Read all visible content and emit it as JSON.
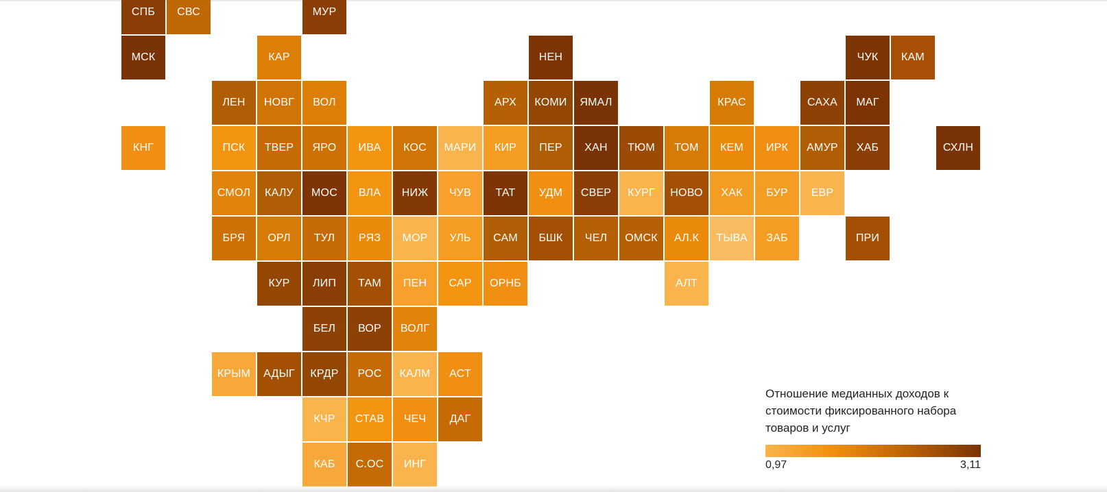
{
  "legend": {
    "title": "Отношение медианных доходов к стоимости фиксированного набора товаров и услуг",
    "min_label": "0,97",
    "max_label": "3,11",
    "min_value": 0.97,
    "max_value": 3.11,
    "colors": [
      "#f9b44d",
      "#f3900e",
      "#c56a05",
      "#7a3306"
    ]
  },
  "regions": [
    {
      "label": "СПБ",
      "row": 0,
      "col": 0,
      "color": "#8a3e05"
    },
    {
      "label": "СВС",
      "row": 0,
      "col": 1,
      "color": "#c06805"
    },
    {
      "label": "МУР",
      "row": 0,
      "col": 4,
      "color": "#8a3e05"
    },
    {
      "label": "МСК",
      "row": 1,
      "col": 0,
      "color": "#7a3306"
    },
    {
      "label": "КАР",
      "row": 1,
      "col": 3,
      "color": "#dd7e07"
    },
    {
      "label": "НЕН",
      "row": 1,
      "col": 9,
      "color": "#7c3405"
    },
    {
      "label": "ЧУК",
      "row": 1,
      "col": 16,
      "color": "#7e3505"
    },
    {
      "label": "КАМ",
      "row": 1,
      "col": 17,
      "color": "#a85106"
    },
    {
      "label": "ЛЕН",
      "row": 2,
      "col": 2,
      "color": "#b05e05"
    },
    {
      "label": "НОВГ",
      "row": 2,
      "col": 3,
      "color": "#d07405"
    },
    {
      "label": "ВОЛ",
      "row": 2,
      "col": 4,
      "color": "#dd7e07"
    },
    {
      "label": "АРХ",
      "row": 2,
      "col": 8,
      "color": "#b56005"
    },
    {
      "label": "КОМИ",
      "row": 2,
      "col": 9,
      "color": "#944705"
    },
    {
      "label": "ЯМАЛ",
      "row": 2,
      "col": 10,
      "color": "#7a3306"
    },
    {
      "label": "КРАС",
      "row": 2,
      "col": 13,
      "color": "#d77b07"
    },
    {
      "label": "САХА",
      "row": 2,
      "col": 15,
      "color": "#8e4105"
    },
    {
      "label": "МАГ",
      "row": 2,
      "col": 16,
      "color": "#7c3405"
    },
    {
      "label": "КНГ",
      "row": 3,
      "col": 0,
      "color": "#f08f12"
    },
    {
      "label": "ПСК",
      "row": 3,
      "col": 2,
      "color": "#f49512"
    },
    {
      "label": "ТВЕР",
      "row": 3,
      "col": 3,
      "color": "#c56a05"
    },
    {
      "label": "ЯРО",
      "row": 3,
      "col": 4,
      "color": "#ce7105"
    },
    {
      "label": "ИВА",
      "row": 3,
      "col": 5,
      "color": "#f49512"
    },
    {
      "label": "КОС",
      "row": 3,
      "col": 6,
      "color": "#d07405"
    },
    {
      "label": "МАРИ",
      "row": 3,
      "col": 7,
      "color": "#f9b44d"
    },
    {
      "label": "КИР",
      "row": 3,
      "col": 8,
      "color": "#f59d23"
    },
    {
      "label": "ПЕР",
      "row": 3,
      "col": 9,
      "color": "#b05e05"
    },
    {
      "label": "ХАН",
      "row": 3,
      "col": 10,
      "color": "#7a3306"
    },
    {
      "label": "ТЮМ",
      "row": 3,
      "col": 11,
      "color": "#9b4b05"
    },
    {
      "label": "ТОМ",
      "row": 3,
      "col": 12,
      "color": "#d77b07"
    },
    {
      "label": "КЕМ",
      "row": 3,
      "col": 13,
      "color": "#ea8a0a"
    },
    {
      "label": "ИРК",
      "row": 3,
      "col": 14,
      "color": "#f08f12"
    },
    {
      "label": "АМУР",
      "row": 3,
      "col": 15,
      "color": "#b05e05"
    },
    {
      "label": "ХАБ",
      "row": 3,
      "col": 16,
      "color": "#8a3e05"
    },
    {
      "label": "СХЛН",
      "row": 3,
      "col": 18,
      "color": "#7a3306"
    },
    {
      "label": "СМОЛ",
      "row": 4,
      "col": 2,
      "color": "#e3840a"
    },
    {
      "label": "КАЛУ",
      "row": 4,
      "col": 3,
      "color": "#b05e05"
    },
    {
      "label": "МОС",
      "row": 4,
      "col": 4,
      "color": "#7e3505"
    },
    {
      "label": "ВЛА",
      "row": 4,
      "col": 5,
      "color": "#f49512"
    },
    {
      "label": "НИЖ",
      "row": 4,
      "col": 6,
      "color": "#833905"
    },
    {
      "label": "ЧУВ",
      "row": 4,
      "col": 7,
      "color": "#f7a12c"
    },
    {
      "label": "ТАТ",
      "row": 4,
      "col": 8,
      "color": "#7e3505"
    },
    {
      "label": "УДМ",
      "row": 4,
      "col": 9,
      "color": "#f08f12"
    },
    {
      "label": "СВЕР",
      "row": 4,
      "col": 10,
      "color": "#8a3e05"
    },
    {
      "label": "КУРГ",
      "row": 4,
      "col": 11,
      "color": "#f9b44d"
    },
    {
      "label": "НОВО",
      "row": 4,
      "col": 12,
      "color": "#a35005"
    },
    {
      "label": "ХАК",
      "row": 4,
      "col": 13,
      "color": "#f59d23"
    },
    {
      "label": "БУР",
      "row": 4,
      "col": 14,
      "color": "#f59d23"
    },
    {
      "label": "ЕВР",
      "row": 4,
      "col": 15,
      "color": "#f9b44d"
    },
    {
      "label": "БРЯ",
      "row": 5,
      "col": 2,
      "color": "#ce7105"
    },
    {
      "label": "ОРЛ",
      "row": 5,
      "col": 3,
      "color": "#d77b07"
    },
    {
      "label": "ТУЛ",
      "row": 5,
      "col": 4,
      "color": "#c56a05"
    },
    {
      "label": "РЯЗ",
      "row": 5,
      "col": 5,
      "color": "#ea8a0a"
    },
    {
      "label": "МОР",
      "row": 5,
      "col": 6,
      "color": "#f9b44d"
    },
    {
      "label": "УЛЬ",
      "row": 5,
      "col": 7,
      "color": "#f59d23"
    },
    {
      "label": "САМ",
      "row": 5,
      "col": 8,
      "color": "#b05e05"
    },
    {
      "label": "БШК",
      "row": 5,
      "col": 9,
      "color": "#a35005"
    },
    {
      "label": "ЧЕЛ",
      "row": 5,
      "col": 10,
      "color": "#b56005"
    },
    {
      "label": "ОМСК",
      "row": 5,
      "col": 11,
      "color": "#b56005"
    },
    {
      "label": "АЛ.К",
      "row": 5,
      "col": 12,
      "color": "#ea8a0a"
    },
    {
      "label": "ТЫВА",
      "row": 5,
      "col": 13,
      "color": "#f9bb60"
    },
    {
      "label": "ЗАБ",
      "row": 5,
      "col": 14,
      "color": "#f59d23"
    },
    {
      "label": "ПРИ",
      "row": 5,
      "col": 16,
      "color": "#a35005"
    },
    {
      "label": "КУР",
      "row": 6,
      "col": 3,
      "color": "#944705"
    },
    {
      "label": "ЛИП",
      "row": 6,
      "col": 4,
      "color": "#8a3e05"
    },
    {
      "label": "ТАМ",
      "row": 6,
      "col": 5,
      "color": "#a35005"
    },
    {
      "label": "ПЕН",
      "row": 6,
      "col": 6,
      "color": "#f7a12c"
    },
    {
      "label": "САР",
      "row": 6,
      "col": 7,
      "color": "#f49512"
    },
    {
      "label": "ОРНБ",
      "row": 6,
      "col": 8,
      "color": "#f08f12"
    },
    {
      "label": "АЛТ",
      "row": 6,
      "col": 12,
      "color": "#f9b44d"
    },
    {
      "label": "БЕЛ",
      "row": 7,
      "col": 4,
      "color": "#8e4105"
    },
    {
      "label": "ВОР",
      "row": 7,
      "col": 5,
      "color": "#8e4105"
    },
    {
      "label": "ВОЛГ",
      "row": 7,
      "col": 6,
      "color": "#e3840a"
    },
    {
      "label": "КРЫМ",
      "row": 8,
      "col": 2,
      "color": "#f7a83a"
    },
    {
      "label": "АДЫГ",
      "row": 8,
      "col": 3,
      "color": "#a35005"
    },
    {
      "label": "КРДР",
      "row": 8,
      "col": 4,
      "color": "#944705"
    },
    {
      "label": "РОС",
      "row": 8,
      "col": 5,
      "color": "#c56a05"
    },
    {
      "label": "КАЛМ",
      "row": 8,
      "col": 6,
      "color": "#f9b44d"
    },
    {
      "label": "АСТ",
      "row": 8,
      "col": 7,
      "color": "#f08f12"
    },
    {
      "label": "КЧР",
      "row": 9,
      "col": 4,
      "color": "#f9b44d"
    },
    {
      "label": "СТАВ",
      "row": 9,
      "col": 5,
      "color": "#f49512"
    },
    {
      "label": "ЧЕЧ",
      "row": 9,
      "col": 6,
      "color": "#f08f12"
    },
    {
      "label": "ДАГ",
      "row": 9,
      "col": 7,
      "color": "#c56a05"
    },
    {
      "label": "КАБ",
      "row": 10,
      "col": 4,
      "color": "#f7a83a"
    },
    {
      "label": "С.ОС",
      "row": 10,
      "col": 5,
      "color": "#c56a05"
    },
    {
      "label": "ИНГ",
      "row": 10,
      "col": 6,
      "color": "#f9b44d"
    }
  ]
}
